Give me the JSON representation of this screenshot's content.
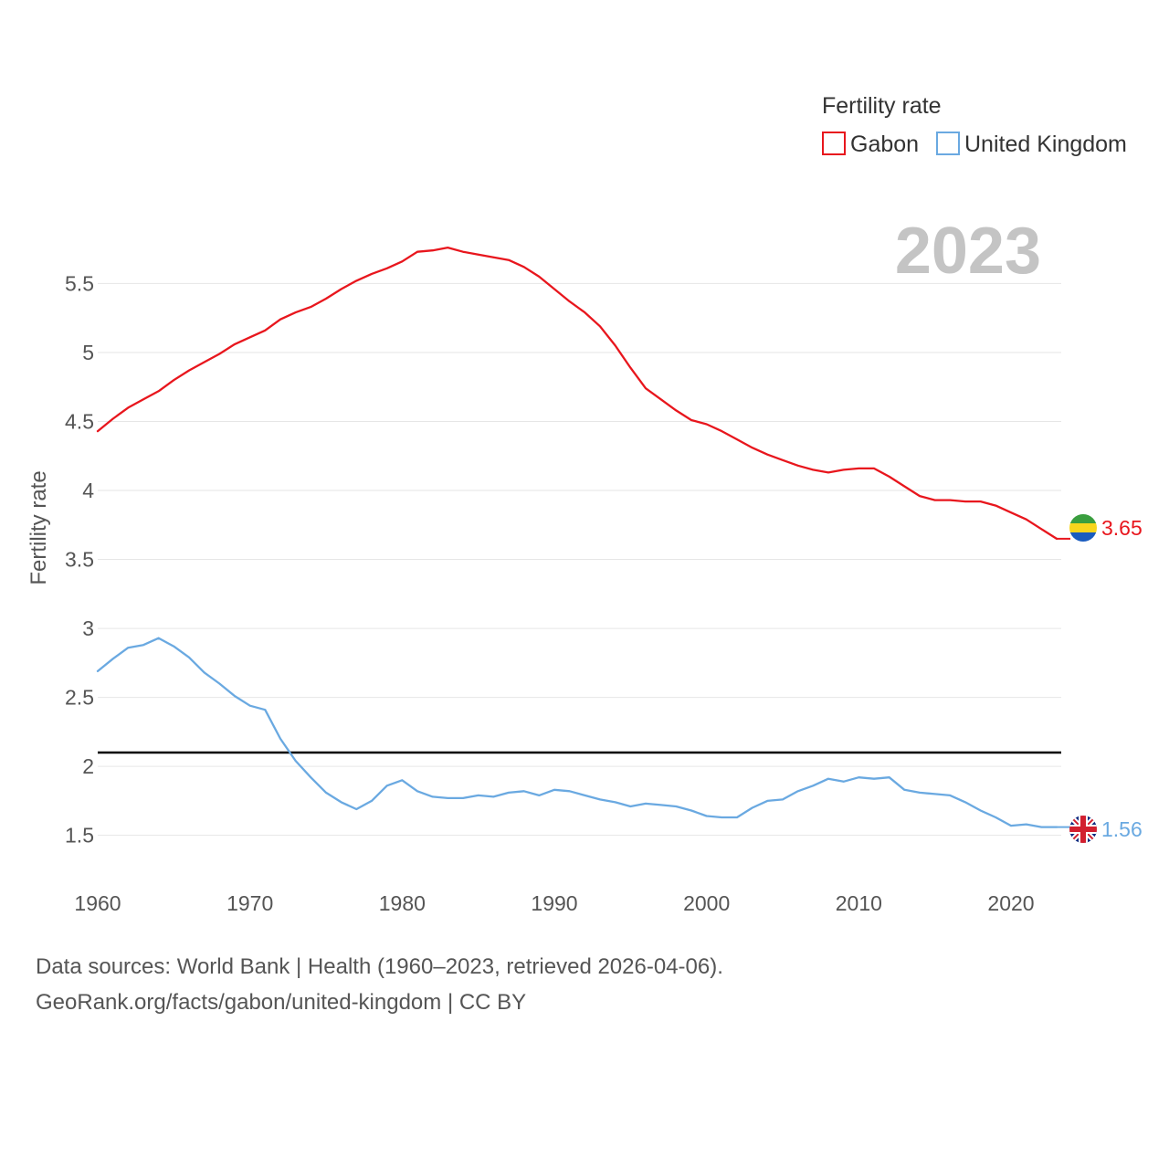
{
  "chart_data": {
    "type": "line",
    "title": "Fertility rate",
    "ylabel": "Fertility rate",
    "xlabel": "",
    "year_label": "2023",
    "xlim": [
      1960,
      2023
    ],
    "ylim": [
      1.2,
      5.9
    ],
    "x_ticks": [
      1960,
      1970,
      1980,
      1990,
      2000,
      2010,
      2020
    ],
    "x_tick_labels": [
      "1960",
      "1970",
      "1980",
      "1990",
      "2000",
      "2010",
      "2020"
    ],
    "y_ticks": [
      1.5,
      2,
      2.5,
      3,
      3.5,
      4,
      4.5,
      5,
      5.5
    ],
    "y_tick_labels": [
      "1.5",
      "2",
      "2.5",
      "3",
      "3.5",
      "4",
      "4.5",
      "5",
      "5.5"
    ],
    "grid": true,
    "legend_position": "top-right",
    "reference_line": {
      "y": 2.1,
      "color": "#000000"
    },
    "x": [
      1960,
      1961,
      1962,
      1963,
      1964,
      1965,
      1966,
      1967,
      1968,
      1969,
      1970,
      1971,
      1972,
      1973,
      1974,
      1975,
      1976,
      1977,
      1978,
      1979,
      1980,
      1981,
      1982,
      1983,
      1984,
      1985,
      1986,
      1987,
      1988,
      1989,
      1990,
      1991,
      1992,
      1993,
      1994,
      1995,
      1996,
      1997,
      1998,
      1999,
      2000,
      2001,
      2002,
      2003,
      2004,
      2005,
      2006,
      2007,
      2008,
      2009,
      2010,
      2011,
      2012,
      2013,
      2014,
      2015,
      2016,
      2017,
      2018,
      2019,
      2020,
      2021,
      2022,
      2023
    ],
    "series": [
      {
        "name": "Gabon",
        "color": "#e8161d",
        "end_label": "3.65",
        "flag": "gabon-flag-icon",
        "values": [
          4.43,
          4.52,
          4.6,
          4.66,
          4.72,
          4.8,
          4.87,
          4.93,
          4.99,
          5.06,
          5.11,
          5.16,
          5.24,
          5.29,
          5.33,
          5.39,
          5.46,
          5.52,
          5.57,
          5.61,
          5.66,
          5.73,
          5.74,
          5.76,
          5.73,
          5.71,
          5.69,
          5.67,
          5.62,
          5.55,
          5.46,
          5.37,
          5.29,
          5.19,
          5.05,
          4.89,
          4.74,
          4.66,
          4.58,
          4.51,
          4.48,
          4.43,
          4.37,
          4.31,
          4.26,
          4.22,
          4.18,
          4.15,
          4.13,
          4.15,
          4.16,
          4.16,
          4.1,
          4.03,
          3.96,
          3.93,
          3.93,
          3.92,
          3.92,
          3.89,
          3.84,
          3.79,
          3.72,
          3.65
        ]
      },
      {
        "name": "United Kingdom",
        "color": "#6aa9e1",
        "end_label": "1.56",
        "flag": "uk-flag-icon",
        "values": [
          2.69,
          2.78,
          2.86,
          2.88,
          2.93,
          2.87,
          2.79,
          2.68,
          2.6,
          2.51,
          2.44,
          2.41,
          2.2,
          2.04,
          1.92,
          1.81,
          1.74,
          1.69,
          1.75,
          1.86,
          1.9,
          1.82,
          1.78,
          1.77,
          1.77,
          1.79,
          1.78,
          1.81,
          1.82,
          1.79,
          1.83,
          1.82,
          1.79,
          1.76,
          1.74,
          1.71,
          1.73,
          1.72,
          1.71,
          1.68,
          1.64,
          1.63,
          1.63,
          1.7,
          1.75,
          1.76,
          1.82,
          1.86,
          1.91,
          1.89,
          1.92,
          1.91,
          1.92,
          1.83,
          1.81,
          1.8,
          1.79,
          1.74,
          1.68,
          1.63,
          1.57,
          1.58,
          1.56,
          1.56
        ]
      }
    ]
  },
  "footer": {
    "line1": "Data sources: World Bank | Health (1960–2023, retrieved 2026-04-06).",
    "line2": "GeoRank.org/facts/gabon/united-kingdom | CC BY"
  }
}
